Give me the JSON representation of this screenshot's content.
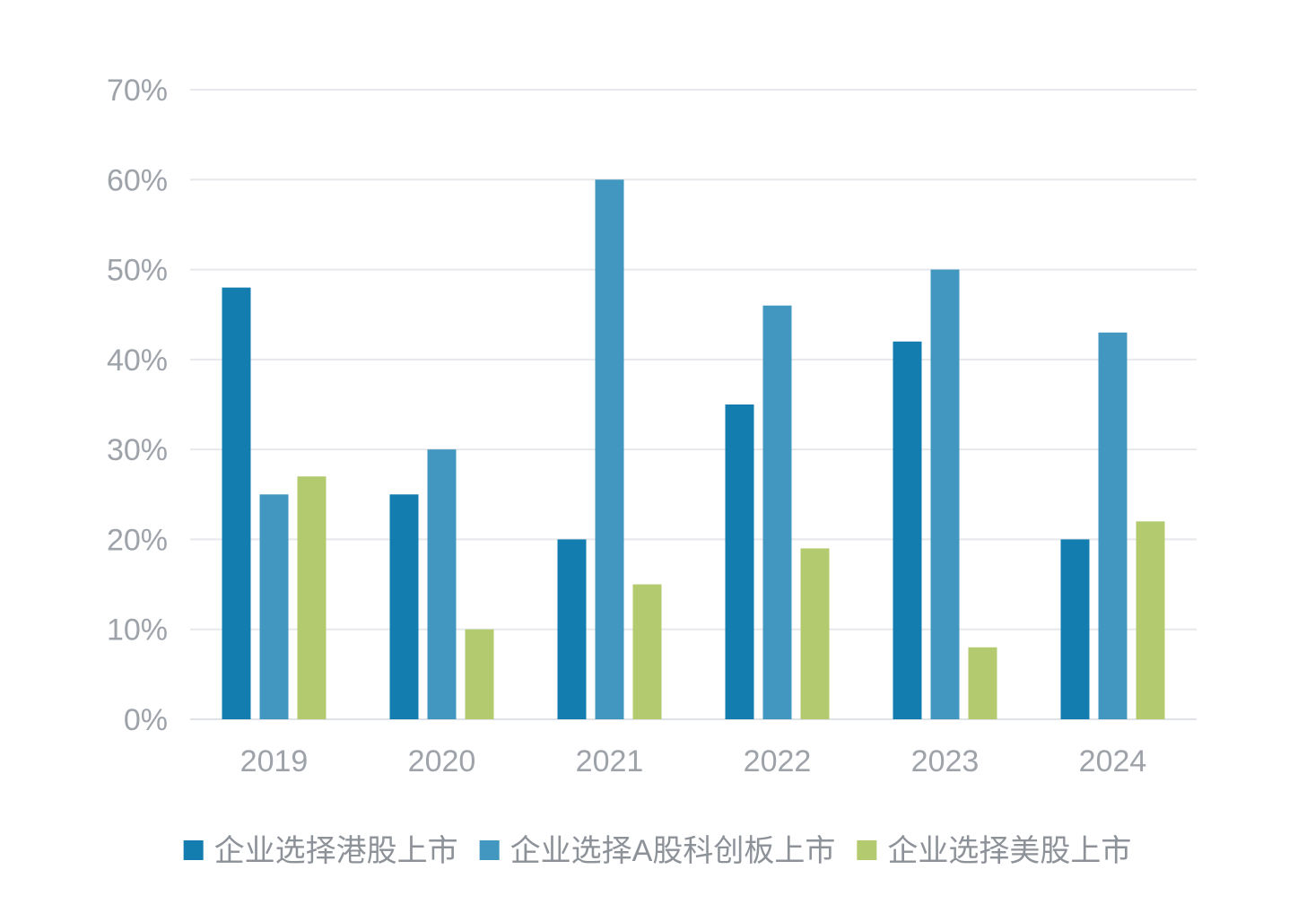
{
  "chart_data": {
    "type": "bar",
    "categories": [
      "2019",
      "2020",
      "2021",
      "2022",
      "2023",
      "2024"
    ],
    "series": [
      {
        "name": "企业选择港股上市",
        "color": "#137db0",
        "values": [
          48,
          25,
          20,
          35,
          42,
          20
        ]
      },
      {
        "name": "企业选择A股科创板上市",
        "color": "#4297c0",
        "values": [
          25,
          30,
          60,
          46,
          50,
          43
        ]
      },
      {
        "name": "企业选择美股上市",
        "color": "#b3cb6e",
        "values": [
          27,
          10,
          15,
          19,
          8,
          22
        ]
      }
    ],
    "ylim": [
      0,
      70
    ],
    "yticks": [
      0,
      10,
      20,
      30,
      40,
      50,
      60,
      70
    ],
    "ytick_labels": [
      "0%",
      "10%",
      "20%",
      "30%",
      "40%",
      "50%",
      "60%",
      "70%"
    ],
    "grid": true,
    "legend_position": "bottom",
    "title": "",
    "xlabel": "",
    "ylabel": ""
  }
}
